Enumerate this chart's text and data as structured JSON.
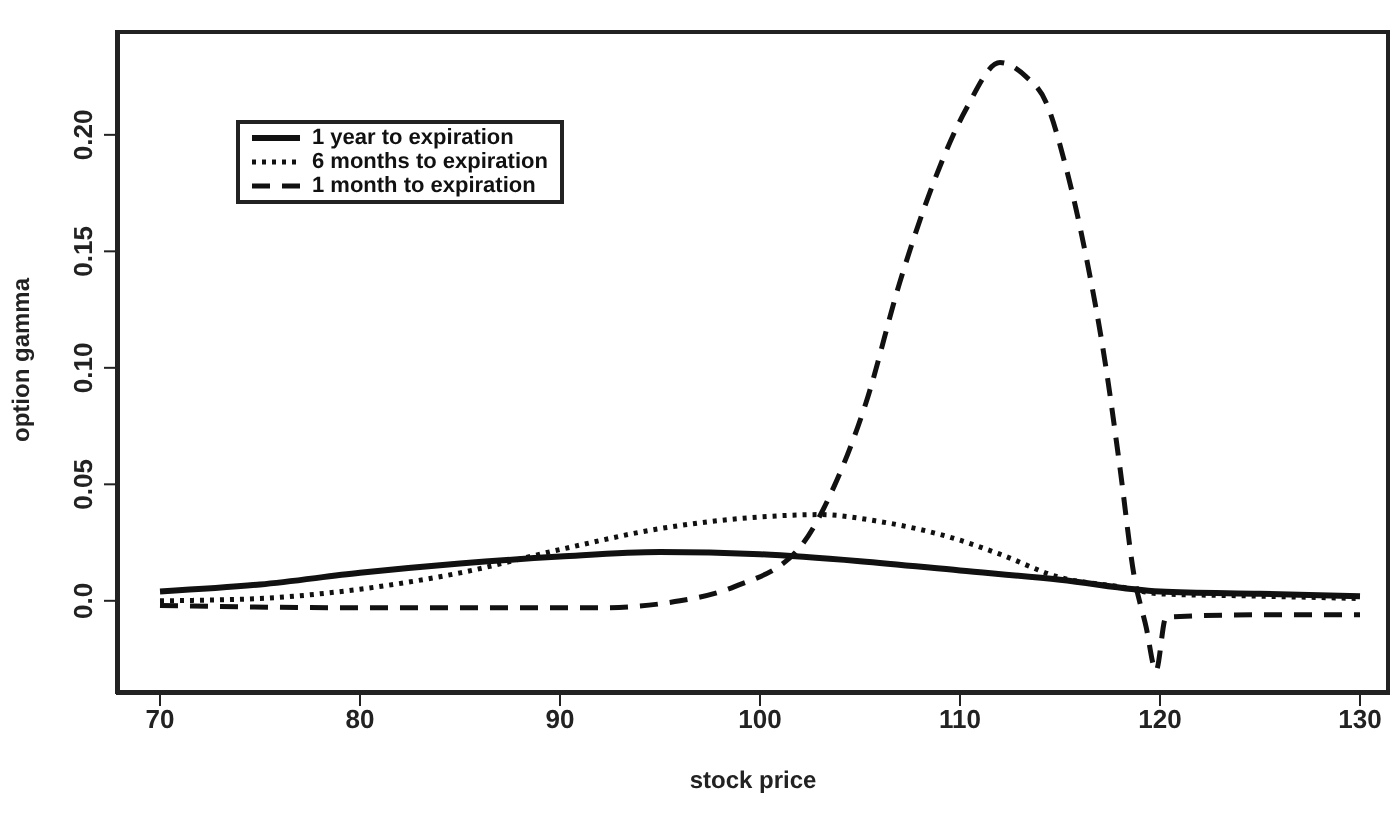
{
  "chart_data": {
    "type": "line",
    "xlabel": "stock price",
    "ylabel": "option gamma",
    "xlim": [
      67.8,
      131.5
    ],
    "ylim": [
      -0.04,
      0.245
    ],
    "xticks": [
      70,
      80,
      90,
      100,
      110,
      120,
      130
    ],
    "yticks": [
      {
        "value": 0,
        "label": "0.0"
      },
      0.05,
      {
        "value": 0.1,
        "label": "0.10"
      },
      0.15,
      {
        "value": 0.2,
        "label": "0.20"
      }
    ],
    "legend": "top left",
    "grid": false,
    "marker": "none",
    "series": [
      {
        "name": "1 year to expiration",
        "color": "#111111",
        "line_style": "solid",
        "x": [
          70,
          75,
          80,
          85,
          90,
          95,
          100,
          105,
          110,
          115,
          120,
          125,
          130
        ],
        "values": [
          0.004,
          0.007,
          0.012,
          0.016,
          0.019,
          0.021,
          0.02,
          0.017,
          0.013,
          0.009,
          0.004,
          0.003,
          0.002
        ]
      },
      {
        "name": "6 months to expiration",
        "color": "#111111",
        "line_style": "dotted",
        "x": [
          70,
          75,
          80,
          85,
          90,
          95,
          100,
          103,
          106,
          110,
          112,
          115,
          118,
          120,
          125,
          130
        ],
        "values": [
          0,
          0.001,
          0.005,
          0.012,
          0.022,
          0.031,
          0.036,
          0.037,
          0.034,
          0.026,
          0.02,
          0.01,
          0.006,
          0.003,
          0.002,
          0.001
        ]
      },
      {
        "name": "1 month to expiration",
        "color": "#111111",
        "line_style": "dashed",
        "x": [
          70,
          80,
          92,
          96,
          98.7,
          102,
          103.7,
          105.3,
          107,
          108.7,
          110.3,
          112,
          113.3,
          114.3,
          115.3,
          116.3,
          117.3,
          118,
          118.7,
          119.3,
          119.8,
          120.3,
          125,
          130
        ],
        "values": [
          -0.002,
          -0.003,
          -0.003,
          0,
          0.006,
          0.023,
          0.049,
          0.085,
          0.137,
          0.18,
          0.211,
          0.231,
          0.225,
          0.214,
          0.186,
          0.148,
          0.1,
          0.057,
          0.011,
          -0.011,
          -0.03,
          -0.007,
          -0.006,
          -0.006
        ]
      }
    ]
  }
}
